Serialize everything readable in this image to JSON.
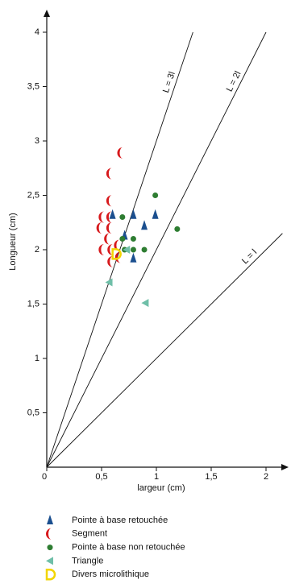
{
  "chart_data": {
    "type": "scatter",
    "x_label": "largeur (cm)",
    "y_label": "Longueur (cm)",
    "xlim": [
      0,
      2.2
    ],
    "ylim": [
      0,
      4.2
    ],
    "xticks": [
      0,
      {
        "value": 0.5,
        "label": "0,5"
      },
      1,
      {
        "value": 1.5,
        "label": "1,5"
      },
      2
    ],
    "yticks": [
      {
        "value": 0.5,
        "label": "0,5"
      },
      1,
      {
        "value": 1.5,
        "label": "1,5"
      },
      2,
      {
        "value": 2.5,
        "label": "2,5"
      },
      3,
      {
        "value": 3.5,
        "label": "3,5"
      },
      4
    ],
    "reference_lines": [
      {
        "label": "L = 3l",
        "slope": 3
      },
      {
        "label": "L = 2l",
        "slope": 2
      },
      {
        "label": "L = l",
        "slope": 1
      }
    ],
    "series": [
      {
        "name": "Pointe à base retouchée",
        "color": "#1b4f8f",
        "marker": "triangle-up",
        "x": [
          0.6,
          0.79,
          0.99,
          0.89,
          0.71,
          0.79
        ],
        "y": [
          2.32,
          2.32,
          2.32,
          2.22,
          2.13,
          1.92
        ]
      },
      {
        "name": "Segment",
        "color": "#d7191c",
        "marker": "half-moon",
        "x": [
          0.68,
          0.58,
          0.58,
          0.51,
          0.58,
          0.49,
          0.58,
          0.56,
          0.51,
          0.59,
          0.65,
          0.59,
          0.66
        ],
        "y": [
          2.89,
          2.7,
          2.45,
          2.3,
          2.3,
          2.2,
          2.2,
          2.1,
          2.0,
          2.0,
          2.04,
          1.89,
          1.93
        ]
      },
      {
        "name": "Pointe à base non retouchée",
        "color": "#2e7d32",
        "marker": "circle",
        "x": [
          0.69,
          0.99,
          1.19,
          0.69,
          0.79,
          0.79,
          0.89,
          0.71
        ],
        "y": [
          2.3,
          2.5,
          2.19,
          2.1,
          2.1,
          2.0,
          2.0,
          2.0
        ]
      },
      {
        "name": "Triangle",
        "color": "#6fbfa8",
        "marker": "triangle-left",
        "x": [
          0.57,
          0.9,
          0.73
        ],
        "y": [
          1.7,
          1.51,
          2.0
        ]
      },
      {
        "name": "Divers microlithique",
        "color": "#f2d500",
        "marker": "d-shape",
        "x": [
          0.63
        ],
        "y": [
          1.96
        ]
      }
    ]
  }
}
